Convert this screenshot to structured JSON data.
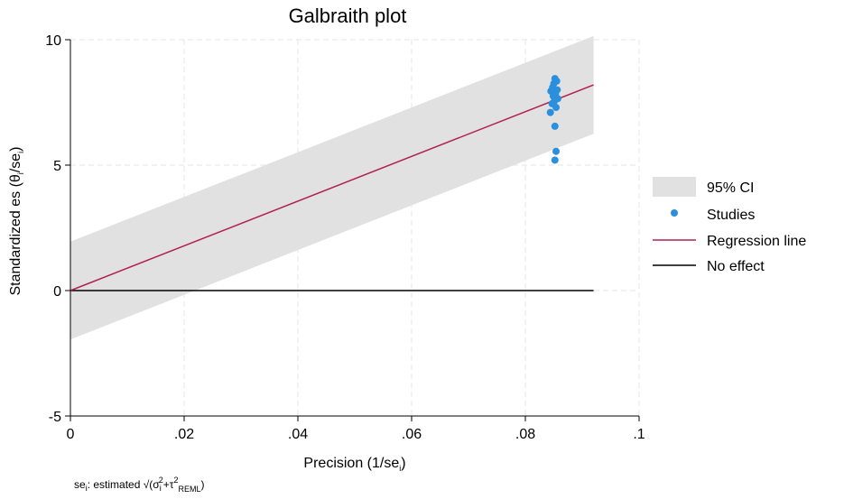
{
  "chart_data": {
    "type": "scatter",
    "title": "Galbraith plot",
    "xlabel": "Precision (1/se",
    "xlabel_sub": "i",
    "xlabel_close": ")",
    "ylabel": "Standardized es  (θ",
    "ylabel_sub1": "i",
    "ylabel_mid": "/se",
    "ylabel_sub2": "i",
    "ylabel_close": ")",
    "xlim": [
      0,
      0.1
    ],
    "ylim": [
      -5,
      10
    ],
    "xticks": [
      {
        "value": 0,
        "label": "0"
      },
      {
        "value": 0.02,
        "label": ".02"
      },
      {
        "value": 0.04,
        "label": ".04"
      },
      {
        "value": 0.06,
        "label": ".06"
      },
      {
        "value": 0.08,
        "label": ".08"
      },
      {
        "value": 0.1,
        "label": ".1"
      }
    ],
    "yticks": [
      {
        "value": -5,
        "label": "-5"
      },
      {
        "value": 0,
        "label": "0"
      },
      {
        "value": 5,
        "label": "5"
      },
      {
        "value": 10,
        "label": "10"
      }
    ],
    "grid": true,
    "ci_band": {
      "name": "95% CI",
      "x": [
        0,
        0.092
      ],
      "lower": [
        -1.95,
        6.25
      ],
      "upper": [
        1.95,
        10.15
      ],
      "color": "#e1e1e1"
    },
    "regression_line": {
      "name": "Regression line",
      "x": [
        0,
        0.092
      ],
      "y": [
        0,
        8.2
      ],
      "color": "#b2204f"
    },
    "no_effect_line": {
      "name": "No effect",
      "x": [
        0,
        0.092
      ],
      "y": [
        0,
        0
      ],
      "color": "#000000"
    },
    "studies": {
      "name": "Studies",
      "color": "#2a8fdc",
      "points": [
        {
          "x": 0.0852,
          "y": 8.45
        },
        {
          "x": 0.0855,
          "y": 8.35
        },
        {
          "x": 0.085,
          "y": 8.25
        },
        {
          "x": 0.0848,
          "y": 8.1
        },
        {
          "x": 0.0856,
          "y": 8.0
        },
        {
          "x": 0.0845,
          "y": 7.95
        },
        {
          "x": 0.0853,
          "y": 7.85
        },
        {
          "x": 0.0849,
          "y": 7.75
        },
        {
          "x": 0.0857,
          "y": 7.65
        },
        {
          "x": 0.0851,
          "y": 7.55
        },
        {
          "x": 0.0847,
          "y": 7.45
        },
        {
          "x": 0.0854,
          "y": 7.3
        },
        {
          "x": 0.0844,
          "y": 7.1
        },
        {
          "x": 0.0852,
          "y": 6.55
        },
        {
          "x": 0.0854,
          "y": 5.55
        },
        {
          "x": 0.0852,
          "y": 5.2
        }
      ]
    },
    "legend": {
      "placement": "right",
      "entries": [
        {
          "label": "95% CI",
          "kind": "band",
          "color": "#e1e1e1"
        },
        {
          "label": "Studies",
          "kind": "dot",
          "color": "#2a8fdc"
        },
        {
          "label": "Regression line",
          "kind": "line",
          "color": "#b2204f"
        },
        {
          "label": "No effect",
          "kind": "line",
          "color": "#000000"
        }
      ]
    },
    "note": {
      "prefix": "se",
      "prefix_sub": "i",
      "text": ": estimated √(σ",
      "sigma_sub": "i",
      "sigma_sup": "2",
      "plus_tau": "+τ",
      "tau_sup": "2",
      "tau_sub": "REML",
      "close": ")"
    }
  }
}
